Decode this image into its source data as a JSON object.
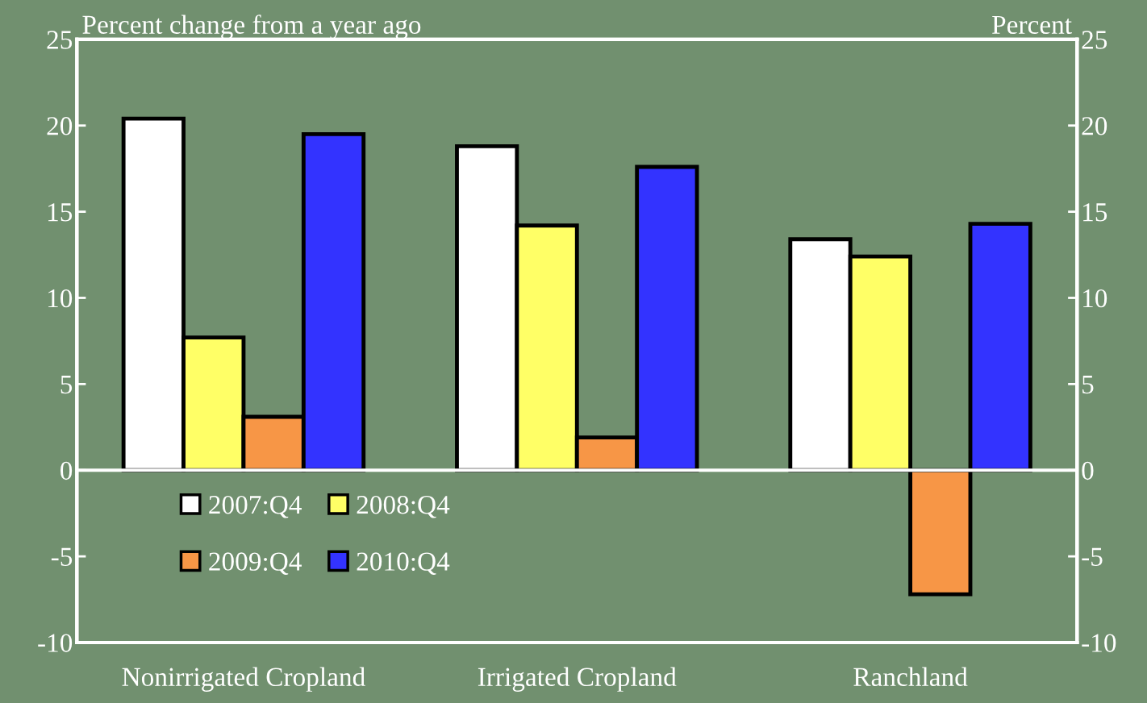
{
  "chart_data": {
    "type": "bar",
    "ylabel": "Percent change from a year ago",
    "y2label": "Percent",
    "categories": [
      "Nonirrigated Cropland",
      "Irrigated Cropland",
      "Ranchland"
    ],
    "series": [
      {
        "name": "2007:Q4",
        "color": "#ffffff",
        "values": [
          20.4,
          18.8,
          13.4
        ]
      },
      {
        "name": "2008:Q4",
        "color": "#ffff66",
        "values": [
          7.7,
          14.2,
          12.4
        ]
      },
      {
        "name": "2009:Q4",
        "color": "#f79646",
        "values": [
          3.1,
          1.9,
          -7.2
        ]
      },
      {
        "name": "2010:Q4",
        "color": "#3333ff",
        "values": [
          19.5,
          17.6,
          14.3
        ]
      }
    ],
    "ylim": [
      -10,
      25
    ],
    "yticks": [
      {
        "value": -10,
        "label": "-10"
      },
      {
        "value": -5,
        "label": "-5"
      },
      0,
      5,
      10,
      15,
      20,
      25
    ],
    "y2lim": [
      -10,
      25
    ],
    "y2ticks": [
      {
        "value": -10,
        "label": "-10"
      },
      {
        "value": -5,
        "label": "-5"
      },
      0,
      5,
      10,
      15,
      20,
      25
    ],
    "ref_lines": [
      {
        "axis": "y",
        "value": 0,
        "color": "#ffffff"
      }
    ],
    "legend": "bottom left"
  }
}
